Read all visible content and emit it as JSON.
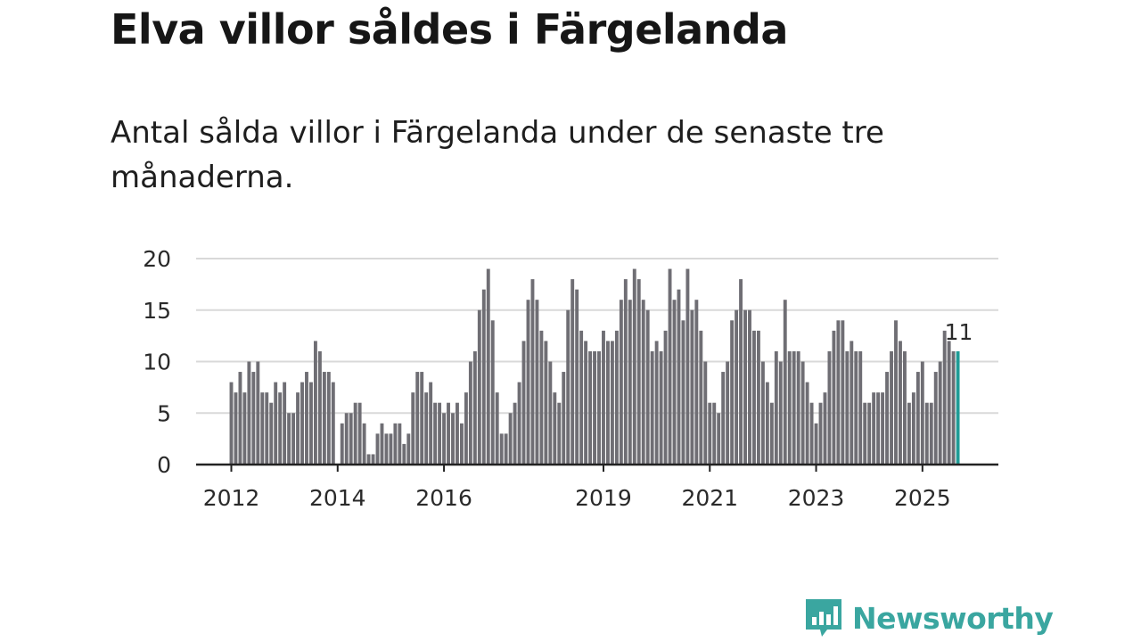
{
  "title": "Elva villor såldes i Färgelanda",
  "subtitle": "Antal sålda villor i Färgelanda under de senaste tre månaderna.",
  "brand": {
    "name": "Newsworthy",
    "color": "#3aa6a0",
    "icon": "newsworthy-chart-icon"
  },
  "colors": {
    "bar": "#6f6e74",
    "highlight": "#1f9c96",
    "grid": "#d9d9d9",
    "axis": "#222222"
  },
  "chart_data": {
    "type": "bar",
    "title": "Elva villor såldes i Färgelanda",
    "xlabel": "",
    "ylabel": "",
    "ylim": [
      0,
      20
    ],
    "yticks": [
      0,
      5,
      10,
      15,
      20
    ],
    "grid": true,
    "start": "2012-01",
    "x_tick_labels": [
      {
        "label": "2012",
        "year": 2012
      },
      {
        "label": "2014",
        "year": 2014
      },
      {
        "label": "2016",
        "year": 2016
      },
      {
        "label": "2019",
        "year": 2019
      },
      {
        "label": "2021",
        "year": 2021
      },
      {
        "label": "2023",
        "year": 2023
      },
      {
        "label": "2025",
        "year": 2025
      }
    ],
    "highlight_label": "11",
    "values": [
      8,
      7,
      9,
      7,
      10,
      9,
      10,
      7,
      7,
      6,
      8,
      7,
      8,
      5,
      5,
      7,
      8,
      9,
      8,
      12,
      11,
      9,
      9,
      8,
      0,
      4,
      5,
      5,
      6,
      6,
      4,
      1,
      1,
      3,
      4,
      3,
      3,
      4,
      4,
      2,
      3,
      7,
      9,
      9,
      7,
      8,
      6,
      6,
      5,
      6,
      5,
      6,
      4,
      7,
      10,
      11,
      15,
      17,
      19,
      14,
      7,
      3,
      3,
      5,
      6,
      8,
      12,
      16,
      18,
      16,
      13,
      12,
      10,
      7,
      6,
      9,
      15,
      18,
      17,
      13,
      12,
      11,
      11,
      11,
      13,
      12,
      12,
      13,
      16,
      18,
      16,
      19,
      18,
      16,
      15,
      11,
      12,
      11,
      13,
      19,
      16,
      17,
      14,
      19,
      15,
      16,
      13,
      10,
      6,
      6,
      5,
      9,
      10,
      14,
      15,
      18,
      15,
      15,
      13,
      13,
      10,
      8,
      6,
      11,
      10,
      16,
      11,
      11,
      11,
      10,
      8,
      6,
      4,
      6,
      7,
      11,
      13,
      14,
      14,
      11,
      12,
      11,
      11,
      6,
      6,
      7,
      7,
      7,
      9,
      11,
      14,
      12,
      11,
      6,
      7,
      9,
      10,
      6,
      6,
      9,
      10,
      13,
      12,
      11,
      11
    ]
  }
}
